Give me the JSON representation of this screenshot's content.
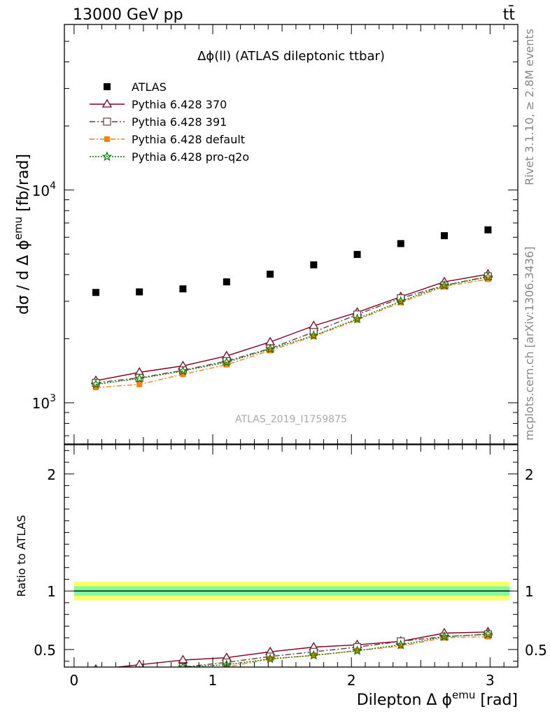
{
  "header": {
    "left": "13000 GeV pp",
    "right": "tt̄"
  },
  "side": {
    "rivet": "Rivet 3.1.10, ≥ 2.8M events",
    "site": "mcplots.cern.ch [arXiv:1306.3436]"
  },
  "chart_data": [
    {
      "type": "scatter",
      "title": "Δϕ(ll) (ATLAS dileptonic ttbar)",
      "watermark": "ATLAS_2019_I1759875",
      "ylabel": "dσ / d Δ ϕ",
      "ylabel_sup": "emu",
      "ylabel_unit": " [fb/rad]",
      "yscale": "log",
      "ylim": [
        640,
        60000
      ],
      "xlim": [
        -0.07,
        3.2
      ],
      "x": [
        0.157,
        0.471,
        0.785,
        1.1,
        1.414,
        1.728,
        2.042,
        2.356,
        2.67,
        2.985
      ],
      "series": [
        {
          "name": "ATLAS",
          "color": "#000000",
          "marker": "square",
          "values": [
            3300,
            3320,
            3430,
            3700,
            4020,
            4450,
            4980,
            5600,
            6100,
            6500
          ]
        },
        {
          "name": "Pythia 6.428 370",
          "color": "#800020",
          "marker": "triangle",
          "dash": "",
          "values": [
            1270,
            1390,
            1490,
            1660,
            1930,
            2300,
            2660,
            3150,
            3700,
            4020
          ]
        },
        {
          "name": "Pythia 6.428 391",
          "color": "#6a3c3c",
          "marker": "open-square",
          "dash": "8,3,2,3",
          "values": [
            1240,
            1310,
            1420,
            1570,
            1800,
            2150,
            2600,
            3100,
            3560,
            3930
          ]
        },
        {
          "name": "Pythia 6.428 default",
          "color": "#ff7f0e",
          "marker": "filled-square",
          "dash": "7,3,2,3",
          "values": [
            1180,
            1220,
            1360,
            1510,
            1760,
            2050,
            2450,
            2960,
            3520,
            3810
          ]
        },
        {
          "name": "Pythia 6.428 pro-q2o",
          "color": "#008000",
          "marker": "star",
          "dash": "2,2",
          "values": [
            1220,
            1300,
            1410,
            1550,
            1790,
            2070,
            2480,
            3000,
            3560,
            3900
          ]
        }
      ],
      "yticks_major": [
        {
          "base": "10",
          "exp": "3",
          "value": 1000
        },
        {
          "base": "10",
          "exp": "4",
          "value": 10000
        }
      ]
    },
    {
      "type": "line",
      "ylabel": "Ratio to ATLAS",
      "xlabel": "Dilepton Δ ϕ",
      "xlabel_sup": "emu",
      "xlabel_unit": " [rad]",
      "ylim": [
        0.35,
        2.25
      ],
      "xlim": [
        -0.07,
        3.2
      ],
      "band": {
        "inner": 0.04,
        "outer": 0.08,
        "inner_color": "#7fff9e",
        "outer_color": "#ffff66"
      },
      "x": [
        0.157,
        0.471,
        0.785,
        1.1,
        1.414,
        1.728,
        2.042,
        2.356,
        2.67,
        2.985
      ],
      "series": [
        {
          "name": "Pythia 6.428 370",
          "color": "#800020",
          "marker": "triangle",
          "dash": "",
          "values": [
            0.33,
            0.37,
            0.41,
            0.43,
            0.48,
            0.52,
            0.54,
            0.57,
            0.64,
            0.65
          ]
        },
        {
          "name": "Pythia 6.428 391",
          "color": "#6a3c3c",
          "marker": "open-square",
          "dash": "8,3,2,3",
          "values": [
            0.3,
            0.32,
            0.35,
            0.39,
            0.44,
            0.48,
            0.52,
            0.57,
            0.61,
            0.63
          ]
        },
        {
          "name": "Pythia 6.428 default",
          "color": "#ff7f0e",
          "marker": "filled-square",
          "dash": "7,3,2,3",
          "values": [
            0.29,
            0.31,
            0.33,
            0.35,
            0.42,
            0.45,
            0.49,
            0.53,
            0.6,
            0.61
          ]
        },
        {
          "name": "Pythia 6.428 pro-q2o",
          "color": "#008000",
          "marker": "star",
          "dash": "2,2",
          "values": [
            0.3,
            0.32,
            0.35,
            0.37,
            0.42,
            0.45,
            0.49,
            0.54,
            0.61,
            0.63
          ]
        }
      ],
      "yticks": [
        {
          "label": "0.5",
          "value": 0.5
        },
        {
          "label": "1",
          "value": 1
        },
        {
          "label": "2",
          "value": 2
        }
      ],
      "xticks": [
        {
          "label": "0",
          "value": 0
        },
        {
          "label": "1",
          "value": 1
        },
        {
          "label": "2",
          "value": 2
        },
        {
          "label": "3",
          "value": 3
        }
      ]
    }
  ]
}
